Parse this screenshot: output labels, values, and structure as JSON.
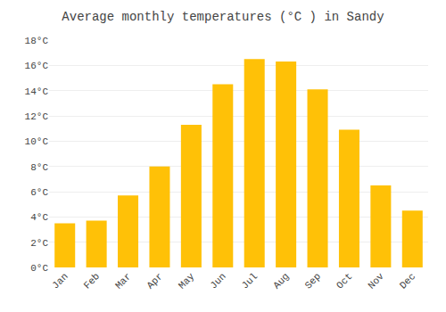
{
  "chart_data": {
    "type": "bar",
    "title": "Average monthly temperatures (°C ) in Sandy",
    "categories": [
      "Jan",
      "Feb",
      "Mar",
      "Apr",
      "May",
      "Jun",
      "Jul",
      "Aug",
      "Sep",
      "Oct",
      "Nov",
      "Dec"
    ],
    "values": [
      3.5,
      3.7,
      5.7,
      8.0,
      11.3,
      14.5,
      16.5,
      16.3,
      14.1,
      10.9,
      6.5,
      4.5
    ],
    "color": "#FFC107",
    "ylim": [
      0,
      18
    ],
    "yticks": [
      {
        "value": 0,
        "label": "0°C"
      },
      {
        "value": 2,
        "label": "2°C"
      },
      {
        "value": 4,
        "label": "4°C"
      },
      {
        "value": 6,
        "label": "6°C"
      },
      {
        "value": 8,
        "label": "8°C"
      },
      {
        "value": 10,
        "label": "10°C"
      },
      {
        "value": 12,
        "label": "12°C"
      },
      {
        "value": 14,
        "label": "14°C"
      },
      {
        "value": 16,
        "label": "16°C"
      },
      {
        "value": 18,
        "label": "18°C"
      }
    ],
    "grid": true
  }
}
